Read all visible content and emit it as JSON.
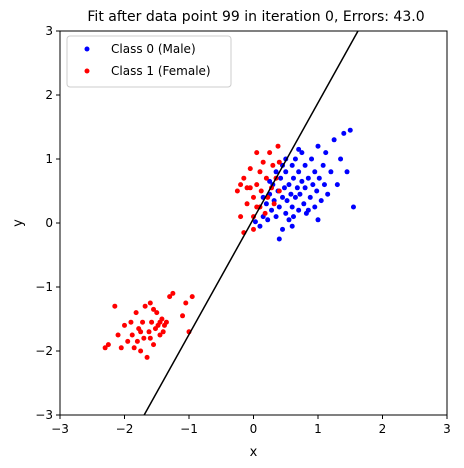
{
  "chart_data": {
    "type": "scatter",
    "title": "Fit after data point 99 in iteration 0, Errors: 43.0",
    "xlabel": "x",
    "ylabel": "y",
    "xlim": [
      -3,
      3
    ],
    "ylim": [
      -3,
      3
    ],
    "xticks": [
      -3,
      -2,
      -1,
      0,
      1,
      2,
      3
    ],
    "yticks": [
      -3,
      -2,
      -1,
      0,
      1,
      2,
      3
    ],
    "grid": false,
    "legend_position": "top-left",
    "series": [
      {
        "name": "Class 0 (Male)",
        "color": "#0000ff",
        "points": [
          [
            0.03,
            0.02
          ],
          [
            0.1,
            -0.05
          ],
          [
            0.15,
            0.1
          ],
          [
            0.2,
            0.3
          ],
          [
            0.22,
            0.05
          ],
          [
            0.25,
            0.45
          ],
          [
            0.28,
            0.2
          ],
          [
            0.3,
            0.6
          ],
          [
            0.32,
            0.35
          ],
          [
            0.35,
            0.1
          ],
          [
            0.38,
            0.5
          ],
          [
            0.4,
            0.25
          ],
          [
            0.42,
            0.7
          ],
          [
            0.45,
            0.4
          ],
          [
            0.45,
            -0.1
          ],
          [
            0.48,
            0.55
          ],
          [
            0.5,
            0.15
          ],
          [
            0.5,
            0.8
          ],
          [
            0.52,
            0.35
          ],
          [
            0.55,
            0.6
          ],
          [
            0.55,
            0.05
          ],
          [
            0.58,
            0.45
          ],
          [
            0.6,
            0.9
          ],
          [
            0.6,
            0.25
          ],
          [
            0.62,
            0.7
          ],
          [
            0.65,
            0.4
          ],
          [
            0.65,
            1.0
          ],
          [
            0.68,
            0.55
          ],
          [
            0.7,
            0.2
          ],
          [
            0.7,
            0.8
          ],
          [
            0.72,
            0.45
          ],
          [
            0.75,
            0.65
          ],
          [
            0.75,
            1.1
          ],
          [
            0.78,
            0.3
          ],
          [
            0.8,
            0.55
          ],
          [
            0.8,
            0.9
          ],
          [
            0.82,
            0.15
          ],
          [
            0.85,
            0.7
          ],
          [
            0.88,
            0.4
          ],
          [
            0.9,
            1.0
          ],
          [
            0.92,
            0.6
          ],
          [
            0.95,
            0.25
          ],
          [
            0.95,
            0.8
          ],
          [
            0.98,
            0.5
          ],
          [
            1.0,
            1.2
          ],
          [
            1.02,
            0.7
          ],
          [
            1.05,
            0.35
          ],
          [
            1.08,
            0.9
          ],
          [
            1.1,
            0.6
          ],
          [
            1.12,
            1.1
          ],
          [
            1.15,
            0.45
          ],
          [
            1.2,
            0.8
          ],
          [
            1.25,
            1.3
          ],
          [
            1.3,
            0.6
          ],
          [
            1.35,
            1.0
          ],
          [
            1.4,
            1.4
          ],
          [
            1.45,
            0.8
          ],
          [
            1.5,
            1.45
          ],
          [
            1.55,
            0.25
          ],
          [
            0.4,
            -0.25
          ],
          [
            0.6,
            -0.05
          ],
          [
            0.35,
            0.8
          ],
          [
            0.5,
            1.0
          ],
          [
            0.7,
            1.15
          ],
          [
            0.85,
            0.2
          ],
          [
            0.25,
            0.65
          ],
          [
            0.15,
            0.4
          ],
          [
            0.45,
            0.9
          ],
          [
            0.62,
            0.1
          ],
          [
            1.0,
            0.05
          ]
        ]
      },
      {
        "name": "Class 1 (Female)",
        "color": "#ff0000",
        "points": [
          [
            -2.3,
            -1.95
          ],
          [
            -2.25,
            -1.9
          ],
          [
            -2.15,
            -1.3
          ],
          [
            -2.1,
            -1.75
          ],
          [
            -2.05,
            -1.95
          ],
          [
            -2.0,
            -1.6
          ],
          [
            -1.95,
            -1.85
          ],
          [
            -1.9,
            -1.55
          ],
          [
            -1.88,
            -1.75
          ],
          [
            -1.85,
            -1.95
          ],
          [
            -1.82,
            -1.4
          ],
          [
            -1.8,
            -1.85
          ],
          [
            -1.78,
            -1.65
          ],
          [
            -1.75,
            -2.0
          ],
          [
            -1.72,
            -1.55
          ],
          [
            -1.7,
            -1.8
          ],
          [
            -1.68,
            -1.3
          ],
          [
            -1.65,
            -2.1
          ],
          [
            -1.62,
            -1.7
          ],
          [
            -1.6,
            -1.25
          ],
          [
            -1.58,
            -1.55
          ],
          [
            -1.55,
            -1.9
          ],
          [
            -1.52,
            -1.65
          ],
          [
            -1.5,
            -1.4
          ],
          [
            -1.48,
            -1.6
          ],
          [
            -1.45,
            -1.75
          ],
          [
            -1.42,
            -1.5
          ],
          [
            -1.4,
            -1.7
          ],
          [
            -1.38,
            -1.6
          ],
          [
            -1.35,
            -1.55
          ],
          [
            -1.3,
            -1.15
          ],
          [
            -1.25,
            -1.1
          ],
          [
            -1.1,
            -1.45
          ],
          [
            -1.05,
            -1.25
          ],
          [
            -1.0,
            -1.7
          ],
          [
            -0.95,
            -1.15
          ],
          [
            -1.6,
            -1.8
          ],
          [
            -1.75,
            -1.7
          ],
          [
            -1.55,
            -1.35
          ],
          [
            -1.45,
            -1.55
          ],
          [
            -0.25,
            0.5
          ],
          [
            -0.2,
            0.1
          ],
          [
            -0.15,
            0.7
          ],
          [
            -0.15,
            -0.15
          ],
          [
            -0.1,
            0.3
          ],
          [
            -0.05,
            0.85
          ],
          [
            -0.05,
            0.55
          ],
          [
            0.0,
            0.1
          ],
          [
            0.0,
            0.4
          ],
          [
            0.05,
            0.6
          ],
          [
            0.05,
            1.1
          ],
          [
            0.1,
            0.25
          ],
          [
            0.1,
            0.8
          ],
          [
            0.12,
            0.5
          ],
          [
            0.15,
            0.95
          ],
          [
            0.18,
            0.15
          ],
          [
            0.2,
            0.7
          ],
          [
            0.22,
            0.4
          ],
          [
            0.25,
            1.1
          ],
          [
            0.28,
            0.55
          ],
          [
            0.3,
            0.9
          ],
          [
            0.32,
            0.3
          ],
          [
            0.35,
            0.7
          ],
          [
            0.38,
            1.2
          ],
          [
            0.4,
            0.5
          ],
          [
            0.4,
            0.95
          ],
          [
            -0.1,
            0.55
          ],
          [
            -0.2,
            0.6
          ],
          [
            0.0,
            -0.1
          ],
          [
            0.05,
            0.25
          ]
        ]
      }
    ],
    "line": {
      "x": [
        -1.695,
        1.62
      ],
      "y": [
        -3,
        3
      ],
      "color": "#000000"
    }
  }
}
